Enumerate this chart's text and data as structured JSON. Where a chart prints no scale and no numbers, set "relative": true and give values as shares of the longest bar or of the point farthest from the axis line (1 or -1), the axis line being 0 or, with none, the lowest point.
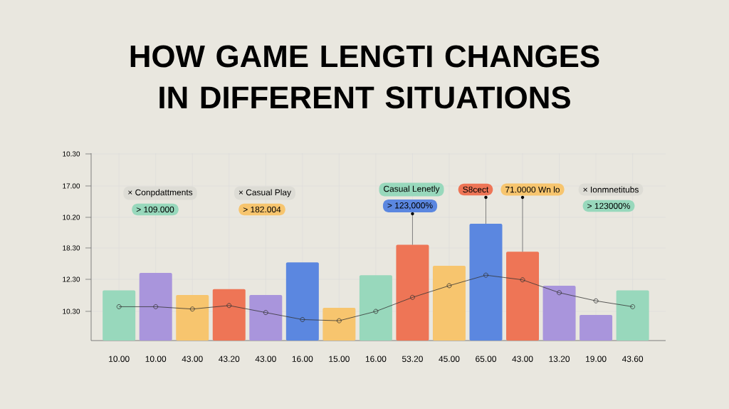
{
  "chart_data": {
    "type": "bar",
    "title": "HOW GAME LENGTI CHANGES IN DIFFERENT SITUATIONS",
    "categories": [
      "10.00",
      "10.00",
      "43.00",
      "43.20",
      "43.00",
      "16.00",
      "15.00",
      "16.00",
      "53.20",
      "45.00",
      "65.00",
      "43.00",
      "13.20",
      "19.00",
      "43.60"
    ],
    "relative": true,
    "series": [
      {
        "colors": [
          "#98d8bc",
          "#a995dc",
          "#f7c56e",
          "#ee7556",
          "#a995dc",
          "#5b87e0",
          "#f7c56e",
          "#98d8bc",
          "#ee7556",
          "#f7c56e",
          "#5b87e0",
          "#ee7556",
          "#a995dc",
          "#a995dc",
          "#98d8bc"
        ],
        "values": [
          0.43,
          0.58,
          0.39,
          0.44,
          0.39,
          0.67,
          0.28,
          0.56,
          0.82,
          0.64,
          1,
          0.76,
          0.47,
          0.22,
          0.43
        ]
      },
      {
        "type": "line",
        "color": "#333333",
        "marker": "circle",
        "values": [
          0.29,
          0.29,
          0.27,
          0.3,
          0.24,
          0.18,
          0.17,
          0.25,
          0.37,
          0.47,
          0.56,
          0.52,
          0.41,
          0.34,
          0.29
        ]
      }
    ],
    "grid": true,
    "annotations": [
      "× Conpdattments",
      "> 109.000",
      "× Casual Play",
      "> 182.004",
      "Casual Lenetly",
      "> 123,000%",
      "S8cect",
      "71.0000 Wn lo",
      "× Ionmnetitubs",
      "> 123000%",
      "10.30",
      "17.00",
      "10.20",
      "18.30",
      "12.30",
      "10.30"
    ]
  }
}
